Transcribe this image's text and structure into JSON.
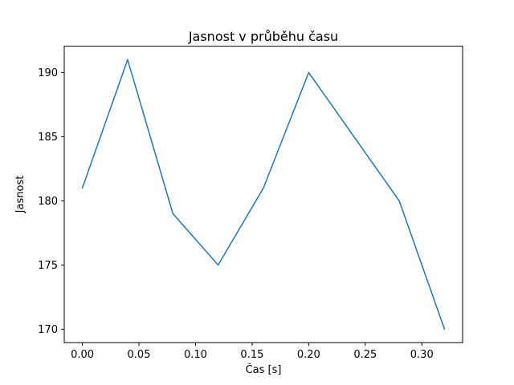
{
  "chart_data": {
    "type": "line",
    "title": "Jasnost v průběhu času",
    "xlabel": "Čas [s]",
    "ylabel": "Jasnost",
    "x": [
      0.0,
      0.04,
      0.08,
      0.12,
      0.16,
      0.2,
      0.24,
      0.28,
      0.32
    ],
    "y": [
      181,
      191,
      179,
      175,
      181,
      190,
      185,
      180,
      170
    ],
    "series": [
      {
        "name": "Jasnost",
        "x": [
          0.0,
          0.04,
          0.08,
          0.12,
          0.16,
          0.2,
          0.24,
          0.28,
          0.32
        ],
        "values": [
          181,
          191,
          179,
          175,
          181,
          190,
          185,
          180,
          170
        ]
      }
    ],
    "xlim": [
      -0.016,
      0.336
    ],
    "ylim": [
      168.95,
      192.05
    ],
    "xticks": {
      "values": [
        0.0,
        0.05,
        0.1,
        0.15,
        0.2,
        0.25,
        0.3
      ],
      "labels": [
        "0.00",
        "0.05",
        "0.10",
        "0.15",
        "0.20",
        "0.25",
        "0.30"
      ]
    },
    "yticks": {
      "values": [
        170,
        175,
        180,
        185,
        190
      ],
      "labels": [
        "170",
        "175",
        "180",
        "185",
        "190"
      ]
    },
    "grid": false,
    "legend": null,
    "line_color": "#1f77b4",
    "spine_color": "#000000",
    "background_color": "#ffffff"
  }
}
